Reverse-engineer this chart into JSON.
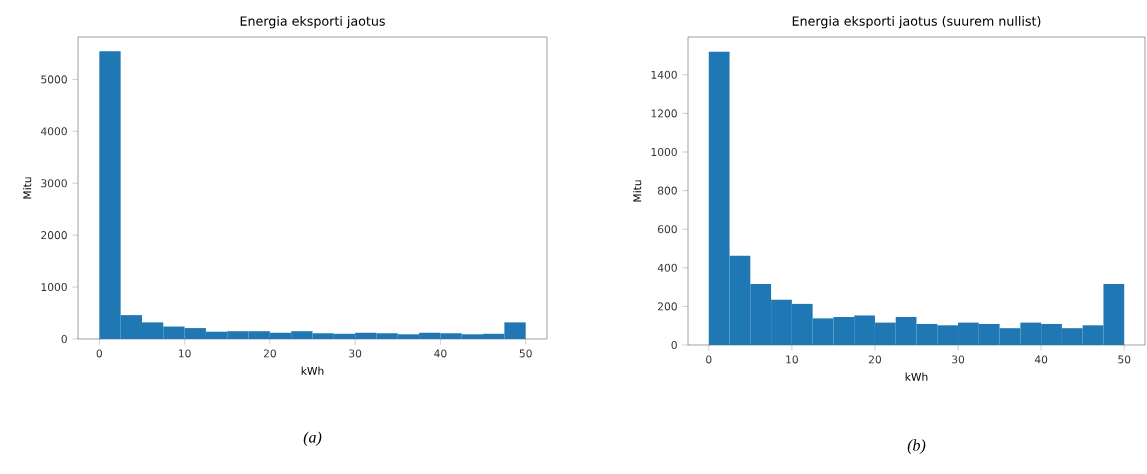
{
  "chart_data": [
    {
      "type": "histogram",
      "title": "Energia eksporti jaotus",
      "xlabel": "kWh",
      "ylabel": "Mitu",
      "bins": [
        0,
        2.5,
        5,
        7.5,
        10,
        12.5,
        15,
        17.5,
        20,
        22.5,
        25,
        27.5,
        30,
        32.5,
        35,
        37.5,
        40,
        42.5,
        45,
        47.5,
        50
      ],
      "values": [
        5540,
        460,
        320,
        240,
        210,
        140,
        150,
        150,
        120,
        150,
        110,
        100,
        120,
        110,
        90,
        120,
        110,
        90,
        100,
        320
      ],
      "color": "#1f77b4",
      "xlim": [
        -2.5,
        52.5
      ],
      "ylim": [
        0,
        5817
      ],
      "xticks": [
        0,
        10,
        20,
        30,
        40,
        50
      ],
      "yticks": [
        0,
        1000,
        2000,
        3000,
        4000,
        5000
      ],
      "annotations": [
        "(a)"
      ]
    },
    {
      "type": "histogram",
      "title": "Energia eksporti jaotus (suurem nullist)",
      "xlabel": "kWh",
      "ylabel": "Mitu",
      "bins": [
        0,
        2.5,
        5,
        7.5,
        10,
        12.5,
        15,
        17.5,
        20,
        22.5,
        25,
        27.5,
        30,
        32.5,
        35,
        37.5,
        40,
        42.5,
        45,
        47.5,
        50
      ],
      "values": [
        1520,
        462,
        316,
        235,
        213,
        138,
        145,
        153,
        116,
        145,
        109,
        102,
        116,
        109,
        87,
        116,
        109,
        87,
        102,
        316
      ],
      "color": "#1f77b4",
      "xlim": [
        -2.5,
        52.5
      ],
      "ylim": [
        0,
        1596
      ],
      "xticks": [
        0,
        10,
        20,
        30,
        40,
        50
      ],
      "yticks": [
        0,
        200,
        400,
        600,
        800,
        1000,
        1200,
        1400
      ],
      "annotations": [
        "(b)"
      ]
    }
  ]
}
